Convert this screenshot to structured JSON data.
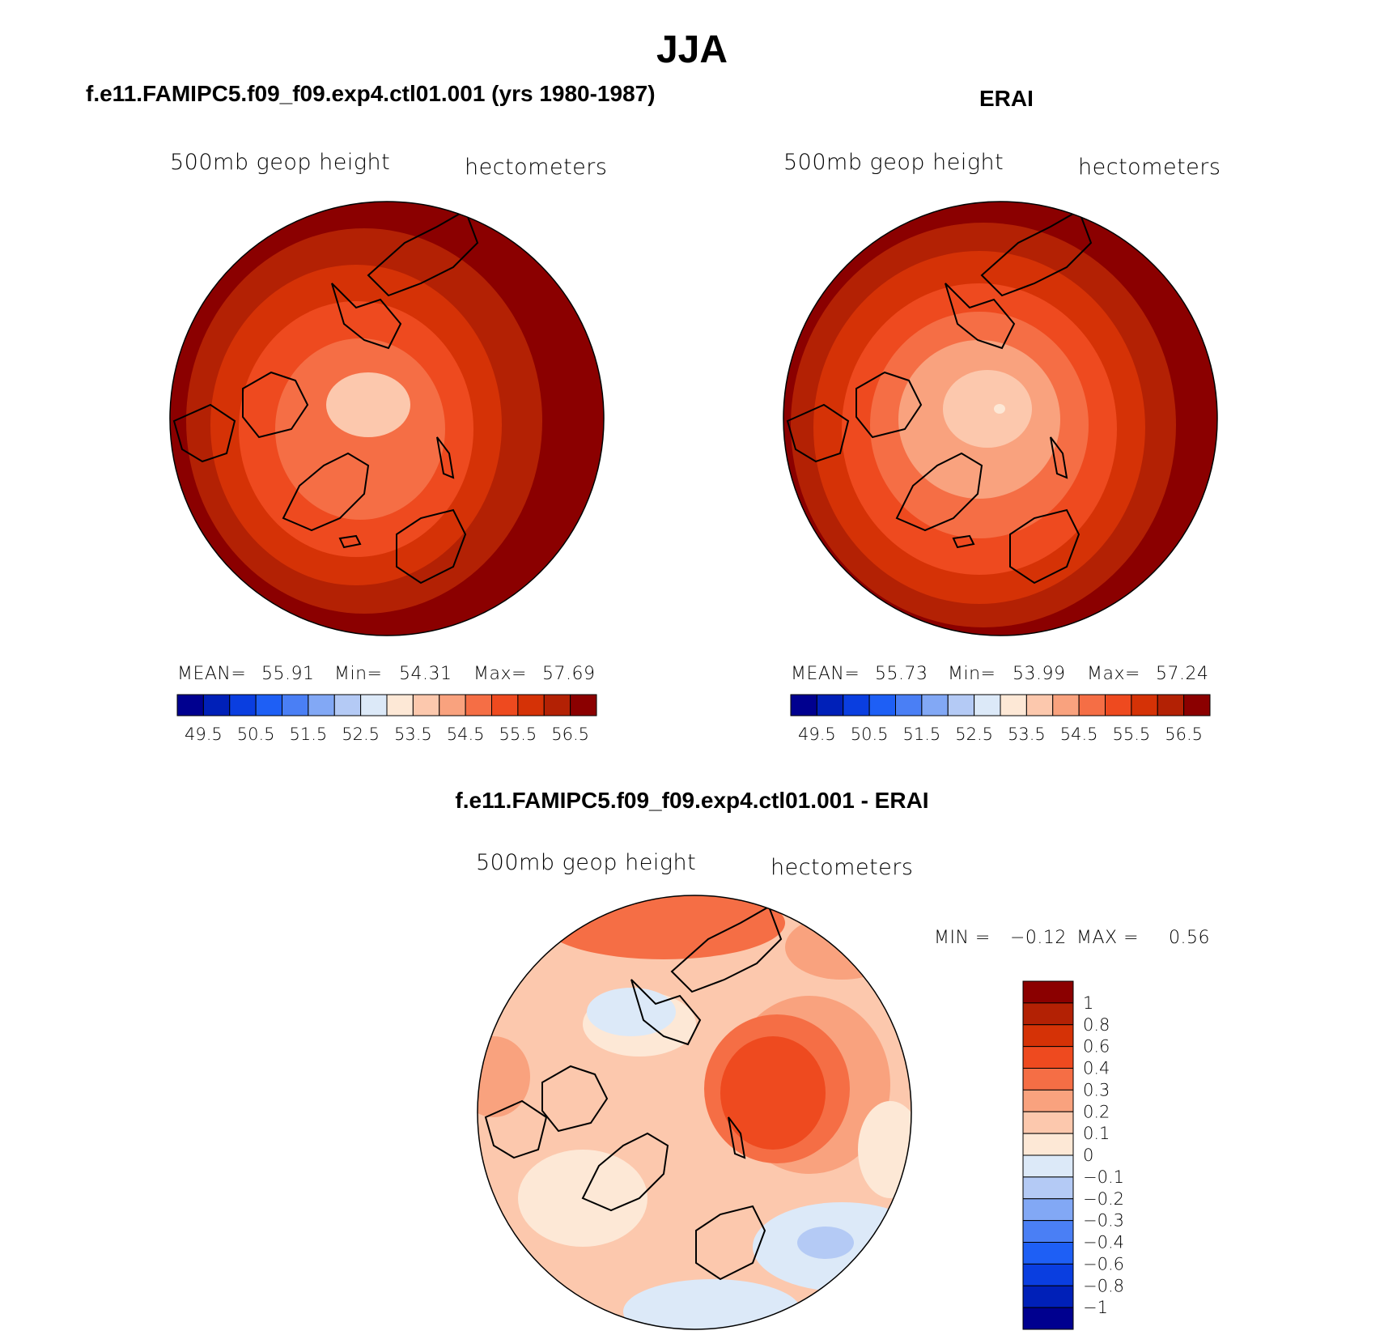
{
  "figure": {
    "title": "JJA"
  },
  "panels": [
    {
      "title": "f.e11.FAMIPC5.f09_f09.exp4.ctl01.001 (yrs 1980-1987)",
      "subtitle_left": "500mb geop height",
      "subtitle_right": "hectometers",
      "stats": {
        "mean_label": "MEAN=",
        "mean": "55.91",
        "min_label": "Min=",
        "min": "54.31",
        "max_label": "Max=",
        "max": "57.69"
      }
    },
    {
      "title": "ERAI",
      "subtitle_left": "500mb geop height",
      "subtitle_right": "hectometers",
      "stats": {
        "mean_label": "MEAN=",
        "mean": "55.73",
        "min_label": "Min=",
        "min": "53.99",
        "max_label": "Max=",
        "max": "57.24"
      }
    },
    {
      "title": "f.e11.FAMIPC5.f09_f09.exp4.ctl01.001 - ERAI",
      "subtitle_left": "500mb geop height",
      "subtitle_right": "hectometers",
      "stats": {
        "min_label": "MIN =",
        "min": "−0.12",
        "max_label": "MAX =",
        "max": "0.56"
      }
    }
  ],
  "chart_data": [
    {
      "type": "heatmap",
      "title": "f.e11.FAMIPC5.f09_f09.exp4.ctl01.001 (yrs 1980-1987)",
      "projection": "north polar stereographic",
      "variable": "500mb geop height",
      "units": "hectometers",
      "mean": 55.91,
      "min": 54.31,
      "max": 57.69,
      "colorbar_labels": [
        "49.5",
        "50.5",
        "51.5",
        "52.5",
        "53.5",
        "54.5",
        "55.5",
        "56.5"
      ],
      "colorbar_levels": [
        49.5,
        50,
        50.5,
        51,
        51.5,
        52,
        52.5,
        53,
        53.5,
        54,
        54.5,
        55,
        55.5,
        56,
        56.5
      ],
      "colorbar_colors": [
        "#00008f",
        "#0020b8",
        "#0a3ee0",
        "#1e5ff5",
        "#4a7ff5",
        "#82a8f5",
        "#b4caf5",
        "#dce9f8",
        "#fde8d6",
        "#fcc8ad",
        "#f9a27e",
        "#f56e45",
        "#ee4a1f",
        "#d53206",
        "#b32104",
        "#8b0000"
      ]
    },
    {
      "type": "heatmap",
      "title": "ERAI",
      "projection": "north polar stereographic",
      "variable": "500mb geop height",
      "units": "hectometers",
      "mean": 55.73,
      "min": 53.99,
      "max": 57.24,
      "colorbar_labels": [
        "49.5",
        "50.5",
        "51.5",
        "52.5",
        "53.5",
        "54.5",
        "55.5",
        "56.5"
      ],
      "colorbar_levels": [
        49.5,
        50,
        50.5,
        51,
        51.5,
        52,
        52.5,
        53,
        53.5,
        54,
        54.5,
        55,
        55.5,
        56,
        56.5
      ],
      "colorbar_colors": [
        "#00008f",
        "#0020b8",
        "#0a3ee0",
        "#1e5ff5",
        "#4a7ff5",
        "#82a8f5",
        "#b4caf5",
        "#dce9f8",
        "#fde8d6",
        "#fcc8ad",
        "#f9a27e",
        "#f56e45",
        "#ee4a1f",
        "#d53206",
        "#b32104",
        "#8b0000"
      ]
    },
    {
      "type": "heatmap",
      "title": "f.e11.FAMIPC5.f09_f09.exp4.ctl01.001 - ERAI",
      "projection": "north polar stereographic",
      "variable": "500mb geop height",
      "units": "hectometers",
      "min": -0.12,
      "max": 0.56,
      "colorbar_labels": [
        "1",
        "0.8",
        "0.6",
        "0.4",
        "0.3",
        "0.2",
        "0.1",
        "0",
        "−0.1",
        "−0.2",
        "−0.3",
        "−0.4",
        "−0.6",
        "−0.8",
        "−1"
      ],
      "colorbar_colors_top_to_bottom": [
        "#8b0000",
        "#b32104",
        "#d53206",
        "#ee4a1f",
        "#f56e45",
        "#f9a27e",
        "#fcc8ad",
        "#fde8d6",
        "#dce9f8",
        "#b4caf5",
        "#82a8f5",
        "#4a7ff5",
        "#1e5ff5",
        "#0a3ee0",
        "#0020b8",
        "#00008f"
      ]
    }
  ]
}
